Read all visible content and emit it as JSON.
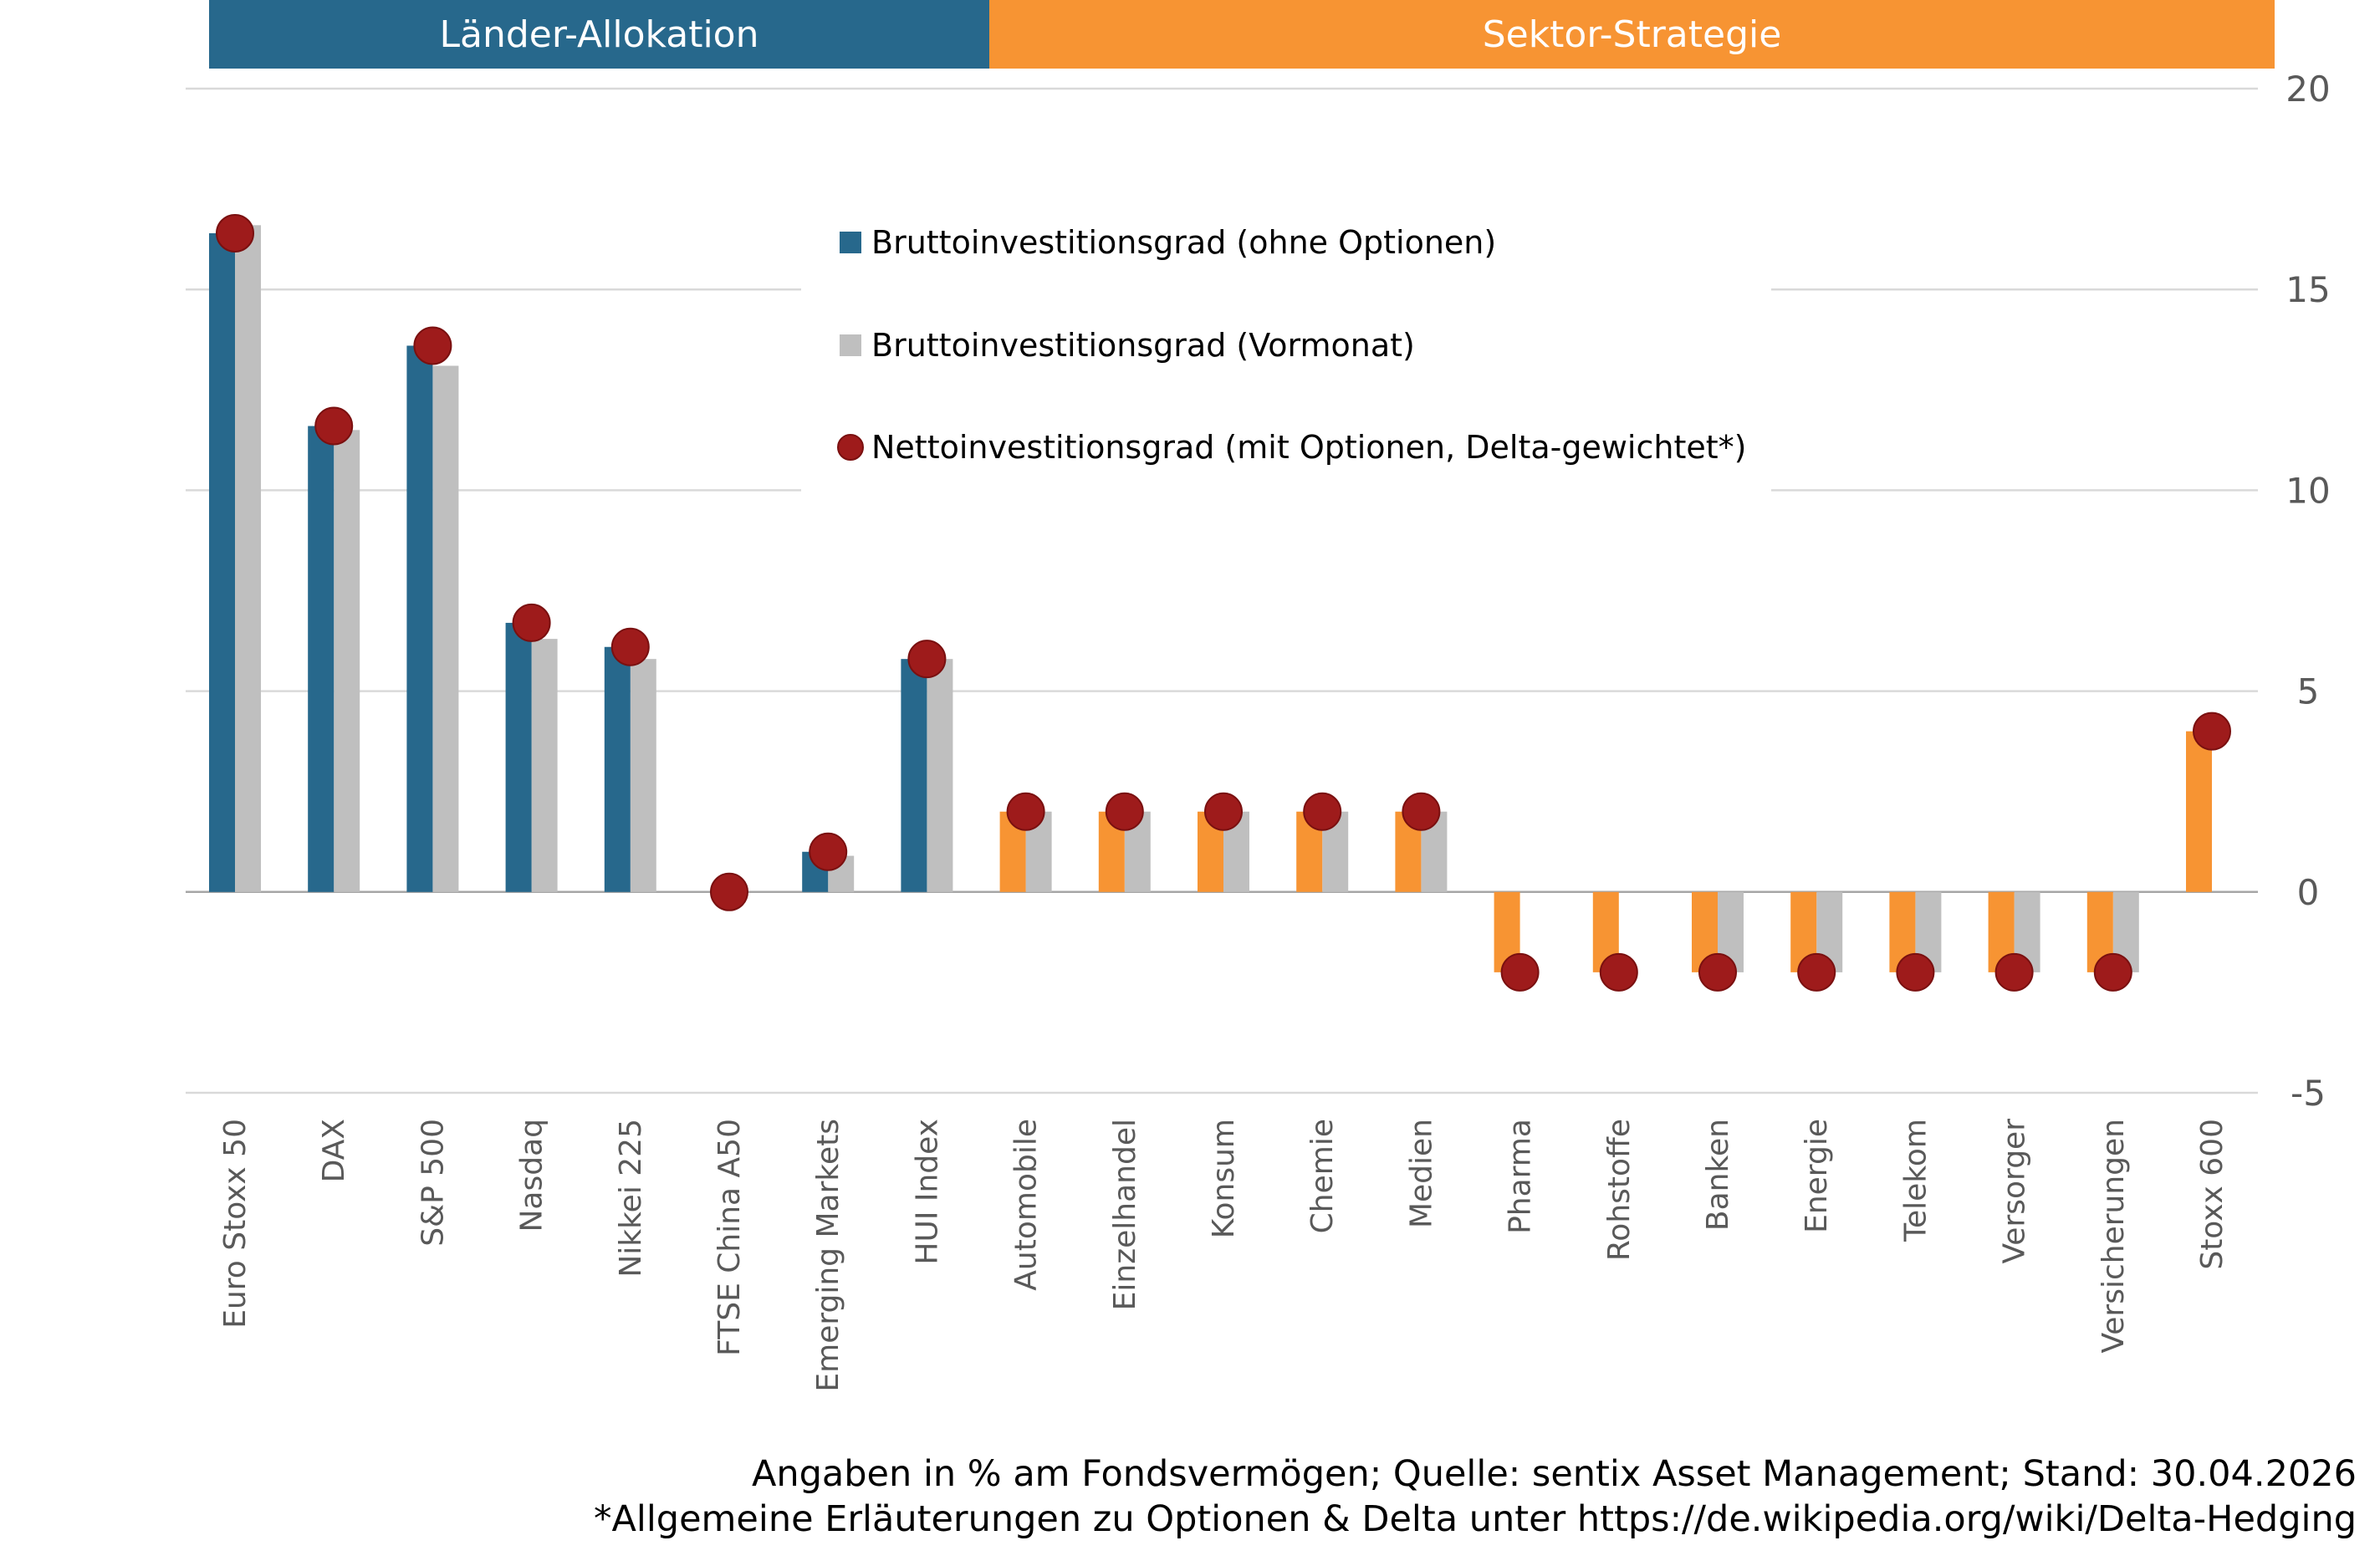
{
  "chart_data": {
    "type": "bar",
    "categories": [
      "Euro Stoxx 50",
      "DAX",
      "S&P 500",
      "Nasdaq",
      "Nikkei 225",
      "FTSE China A50",
      "Emerging Markets",
      "HUI Index",
      "Automobile",
      "Einzelhandel",
      "Konsum",
      "Chemie",
      "Medien",
      "Pharma",
      "Rohstoffe",
      "Banken",
      "Energie",
      "Telekom",
      "Versorger",
      "Versicherungen",
      "Stoxx 600"
    ],
    "groups": [
      {
        "label": "Länder-Allokation",
        "color": "#27688C",
        "count": 8
      },
      {
        "label": "Sektor-Strategie",
        "color": "#F79433",
        "count": 13
      }
    ],
    "series": [
      {
        "name": "Bruttoinvestitionsgrad (ohne Optionen)",
        "kind": "bar",
        "color": "#27688C",
        "values": [
          16.4,
          11.6,
          13.6,
          6.7,
          6.1,
          0,
          1.0,
          5.8,
          2.0,
          2.0,
          2.0,
          2.0,
          2.0,
          -2.0,
          -2.0,
          -2.0,
          -2.0,
          -2.0,
          -2.0,
          -2.0,
          4.0
        ]
      },
      {
        "name": "Bruttoinvestitionsgrad (Vormonat)",
        "kind": "bar",
        "color": "#BFBFBF",
        "values": [
          16.6,
          11.5,
          13.1,
          6.3,
          5.8,
          0,
          0.9,
          5.8,
          2.0,
          2.0,
          2.0,
          2.0,
          2.0,
          0,
          0,
          -2.0,
          -2.0,
          -2.0,
          -2.0,
          -2.0,
          0
        ]
      },
      {
        "name": "Nettoinvestitionsgrad (mit Optionen, Delta-gewichtet*)",
        "kind": "dot",
        "color": "#9E1B1B",
        "values": [
          16.4,
          11.6,
          13.6,
          6.7,
          6.1,
          0,
          1.0,
          5.8,
          2.0,
          2.0,
          2.0,
          2.0,
          2.0,
          -2.0,
          -2.0,
          -2.0,
          -2.0,
          -2.0,
          -2.0,
          -2.0,
          4.0
        ]
      }
    ],
    "yticks": [
      20,
      15,
      10,
      5,
      0,
      -5
    ],
    "ylim": [
      -5,
      20
    ],
    "grid": true,
    "legend_position": "top-center"
  },
  "footnotes": {
    "line1": "Angaben in % am Fondsvermögen; Quelle: sentix Asset Management; Stand: 30.04.2026",
    "line2": "*Allgemeine Erläuterungen zu Optionen & Delta unter https://de.wikipedia.org/wiki/Delta-Hedging"
  }
}
